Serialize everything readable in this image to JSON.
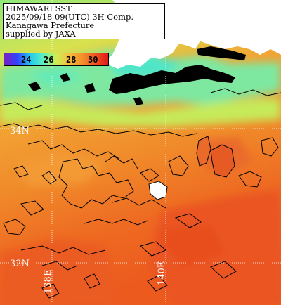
{
  "info_box": {
    "line1": "HIMAWARI SST",
    "line2": "2025/09/18 09(UTC) 3H Comp.",
    "line3": "Kanagawa Prefecture",
    "line4": "supplied by JAXA"
  },
  "colorbar": {
    "ticks": [
      "24",
      "26",
      "28",
      "30"
    ],
    "colors": {
      "c22": "#7a1fbf",
      "c24": "#3344ff",
      "c25": "#22c8f0",
      "c26": "#5cf0c0",
      "c27": "#cdee52",
      "c28": "#f7bc3e",
      "c29": "#f3902a",
      "c30": "#ee5522",
      "c31": "#e01818"
    }
  },
  "grid_labels": {
    "lat_34": "34N",
    "lat_32": "32N",
    "lon_138": "138E",
    "lon_140": "140E"
  },
  "map_colors": {
    "land": "#ffffff",
    "missing": "#000000",
    "coast": "#000000",
    "grid": "#ffffff"
  }
}
